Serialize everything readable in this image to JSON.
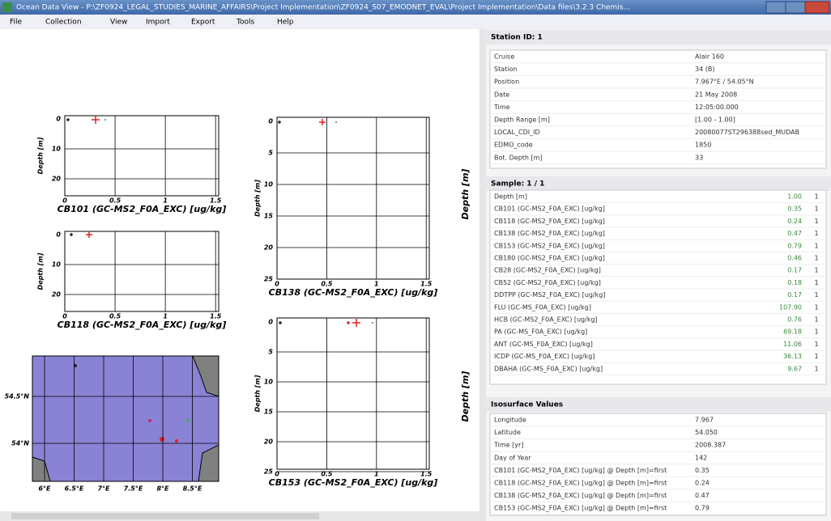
{
  "window": {
    "title": "Ocean Data View - P:\\ZF0924_LEGAL_STUDIES_MARINE_AFFAIRS\\Project Implementation\\ZF0924_S07_EMODNET_EVAL\\Project Implementation\\Data files\\3.2.3 Chemis...",
    "menu": [
      "File",
      "Collection",
      "View",
      "Import",
      "Export",
      "Tools",
      "Help"
    ]
  },
  "plots": [
    {
      "ylabel": "Depth [m]",
      "xlabel": "CB101 (GC-MS2_F0A_EXC) [ug/kg]",
      "xticks": [
        "0",
        "0.5",
        "1",
        "1.5"
      ],
      "yticks": [
        "0",
        "10",
        "20"
      ]
    },
    {
      "ylabel": "Depth [m]",
      "xlabel": "CB118 (GC-MS2_F0A_EXC) [ug/kg]",
      "xticks": [
        "0",
        "0.5",
        "1",
        "1.5"
      ],
      "yticks": [
        "0",
        "10",
        "20"
      ]
    },
    {
      "ylabel": "Depth [m]",
      "xlabel": "CB138 (GC-MS2_F0A_EXC) [ug/kg]",
      "xticks": [
        "0",
        "0.5",
        "1",
        "1.5"
      ],
      "yticks": [
        "0",
        "5",
        "10",
        "15",
        "20",
        "25"
      ]
    },
    {
      "ylabel": "Depth [m]",
      "xlabel": "CB153 (GC-MS2_F0A_EXC) [ug/kg]",
      "xticks": [
        "0",
        "0.5",
        "1",
        "1.5"
      ],
      "yticks": [
        "0",
        "5",
        "10",
        "15",
        "20",
        "25"
      ]
    }
  ],
  "side_labels": [
    "Depth [m]",
    "Depth [m]"
  ],
  "map": {
    "lat": [
      "54.5°N",
      "54°N"
    ],
    "lon": [
      "6°E",
      "6.5°E",
      "7°E",
      "7.5°E",
      "8°E",
      "8.5°E"
    ]
  },
  "station": {
    "header": "Station ID: 1",
    "rows": [
      [
        "Cruise",
        "Alair 160"
      ],
      [
        "Station",
        "34 (B)"
      ],
      [
        "Position",
        "7.967°E / 54.05°N"
      ],
      [
        "Date",
        "21 May 2008"
      ],
      [
        "Time",
        "12:05:00.000"
      ],
      [
        "Depth Range [m]",
        "[1.00 - 1.00]"
      ],
      [
        "LOCAL_CDI_ID",
        "20080077ST296388sed_MUDAB"
      ],
      [
        "EDMO_code",
        "1850"
      ],
      [
        "Bot. Depth [m]",
        "33"
      ]
    ]
  },
  "sample": {
    "header": "Sample: 1 / 1",
    "rows": [
      [
        "Depth [m]",
        "1.00",
        "1"
      ],
      [
        "CB101 (GC-MS2_F0A_EXC) [ug/kg]",
        "0.35",
        "1"
      ],
      [
        "CB118 (GC-MS2_F0A_EXC) [ug/kg]",
        "0.24",
        "1"
      ],
      [
        "CB138 (GC-MS2_F0A_EXC) [ug/kg]",
        "0.47",
        "1"
      ],
      [
        "CB153 (GC-MS2_F0A_EXC) [ug/kg]",
        "0.79",
        "1"
      ],
      [
        "CB180 (GC-MS2_F0A_EXC) [ug/kg]",
        "0.46",
        "1"
      ],
      [
        "CB28 (GC-MS2_F0A_EXC) [ug/kg]",
        "0.17",
        "1"
      ],
      [
        "CB52 (GC-MS2_F0A_EXC) [ug/kg]",
        "0.18",
        "1"
      ],
      [
        "DDTPP (GC-MS2_F0A_EXC) [ug/kg]",
        "0.17",
        "1"
      ],
      [
        "FLU (GC-MS_F0A_EXC) [ug/kg]",
        "107.90",
        "1"
      ],
      [
        "HCB (GC-MS2_F0A_EXC) [ug/kg]",
        "0.76",
        "1"
      ],
      [
        "PA (GC-MS_F0A_EXC) [ug/kg]",
        "69.18",
        "1"
      ],
      [
        "ANT (GC-MS_F0A_EXC) [ug/kg]",
        "11.06",
        "1"
      ],
      [
        "ICDP (GC-MS_F0A_EXC) [ug/kg]",
        "36.13",
        "1"
      ],
      [
        "DBAHA (GC-MS_F0A_EXC) [ug/kg]",
        "9.67",
        "1"
      ]
    ]
  },
  "isosurface": {
    "header": "Isosurface Values",
    "rows": [
      [
        "Longitude",
        "7.967"
      ],
      [
        "Latitude",
        "54.050"
      ],
      [
        "Time [yr]",
        "2008.387"
      ],
      [
        "Day of Year",
        "142"
      ],
      [
        "CB101 (GC-MS2_F0A_EXC) [ug/kg] @ Depth [m]=first",
        "0.35"
      ],
      [
        "CB118 (GC-MS2_F0A_EXC) [ug/kg] @ Depth [m]=first",
        "0.24"
      ],
      [
        "CB138 (GC-MS2_F0A_EXC) [ug/kg] @ Depth [m]=first",
        "0.47"
      ],
      [
        "CB153 (GC-MS2_F0A_EXC) [ug/kg] @ Depth [m]=first",
        "0.79"
      ]
    ]
  }
}
